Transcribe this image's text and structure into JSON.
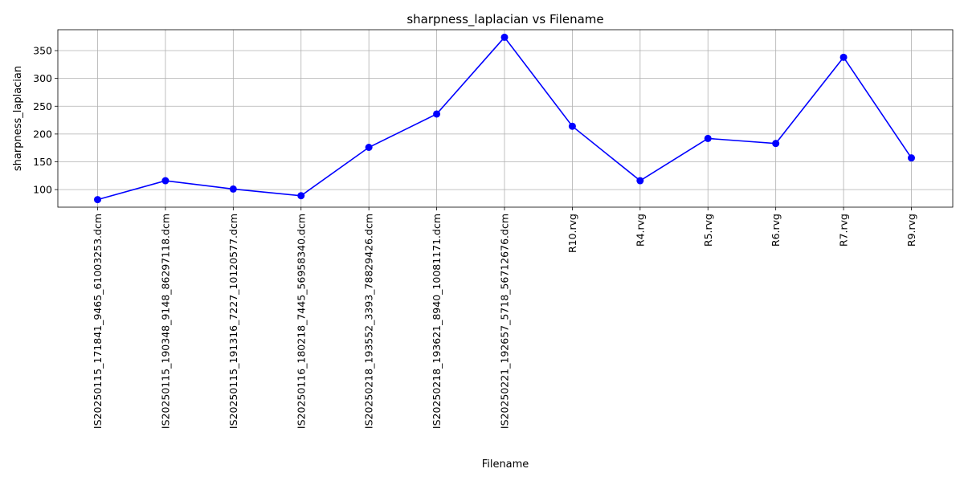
{
  "chart_data": {
    "type": "line",
    "title": "sharpness_laplacian vs Filename",
    "xlabel": "Filename",
    "ylabel": "sharpness_laplacian",
    "categories": [
      "IS20250115_171841_9465_61003253.dcm",
      "IS20250115_190348_9148_86297118.dcm",
      "IS20250115_191316_7227_10120577.dcm",
      "IS20250116_180218_7445_56958340.dcm",
      "IS20250218_193552_3393_78829426.dcm",
      "IS20250218_193621_8940_10081171.dcm",
      "IS20250221_192657_5718_56712676.dcm",
      "R10.rvg",
      "R4.rvg",
      "R5.rvg",
      "R6.rvg",
      "R7.rvg",
      "R9.rvg"
    ],
    "series": [
      {
        "values": [
          82,
          116,
          101,
          89,
          176,
          236,
          374,
          214,
          116,
          192,
          183,
          338,
          157
        ],
        "color": "#0000ff",
        "marker": "circle"
      }
    ],
    "yticks": [
      100,
      150,
      200,
      250,
      300,
      350
    ],
    "ylim": [
      68.4,
      387.6
    ],
    "grid": true,
    "legend": "none"
  }
}
